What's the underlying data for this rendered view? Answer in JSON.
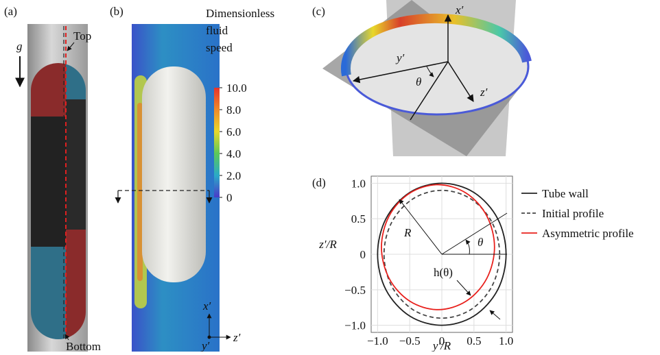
{
  "panels": {
    "a": {
      "label": "(a)",
      "gravity": "g",
      "top": "Top",
      "bottom": "Bottom"
    },
    "b": {
      "label": "(b)",
      "colorbar": {
        "title": [
          "Dimensionless",
          "fluid",
          "speed"
        ],
        "clim": [
          0,
          10
        ],
        "ticks": [
          {
            "value": 10,
            "label": "10.0"
          },
          {
            "value": 8,
            "label": "8.0"
          },
          {
            "value": 6,
            "label": "6.0"
          },
          {
            "value": 4,
            "label": "4.0"
          },
          {
            "value": 2,
            "label": "2.0"
          },
          0
        ]
      },
      "axes": {
        "x": "x′",
        "z": "z′",
        "y": "y′"
      }
    },
    "c": {
      "label": "(c)",
      "axes": {
        "x": "x′",
        "y": "y′",
        "z": "z′"
      },
      "angle": "θ"
    }
  },
  "chart_data": {
    "type": "line",
    "label": "(d)",
    "xlabel": "y′/R",
    "ylabel": "z′/R",
    "xlim": [
      -1.1,
      1.1
    ],
    "ylim": [
      -1.1,
      1.1
    ],
    "xticks": [
      {
        "value": -1,
        "label": "−1.0"
      },
      {
        "value": -0.5,
        "label": "−0.5"
      },
      0,
      0.5,
      {
        "value": 1,
        "label": "1.0"
      }
    ],
    "yticks": [
      {
        "value": 1,
        "label": "1.0"
      },
      0.5,
      0,
      {
        "value": -0.5,
        "label": "−0.5"
      },
      {
        "value": -1,
        "label": "−1.0"
      }
    ],
    "grid": true,
    "annotations": {
      "radius": "R",
      "angle": "θ",
      "thickness": "h(θ)"
    },
    "series": [
      {
        "name": "Tube wall",
        "color": "#222222",
        "dash": false,
        "x": [
          1,
          0.87,
          0.5,
          0,
          -0.5,
          -0.87,
          -1,
          -0.87,
          -0.5,
          0,
          0.5,
          0.87,
          1
        ],
        "values": [
          0,
          0.5,
          0.87,
          1,
          0.87,
          0.5,
          0,
          -0.5,
          -0.87,
          -1,
          -0.87,
          -0.5,
          0
        ]
      },
      {
        "name": "Initial profile",
        "color": "#444444",
        "dash": true,
        "x": [
          0.9,
          0.78,
          0.45,
          0,
          -0.45,
          -0.78,
          -0.9,
          -0.78,
          -0.45,
          0,
          0.45,
          0.78,
          0.9
        ],
        "values": [
          0,
          0.45,
          0.78,
          0.9,
          0.78,
          0.45,
          0,
          -0.45,
          -0.78,
          -0.9,
          -0.78,
          -0.45,
          0
        ]
      },
      {
        "name": "Asymmetric profile",
        "color": "#e8201c",
        "dash": false,
        "x": [
          0.82,
          0.7,
          0.38,
          -0.06,
          -0.5,
          -0.82,
          -0.94,
          -0.82,
          -0.5,
          -0.06,
          0.38,
          0.7,
          0.82
        ],
        "values": [
          0.1,
          0.54,
          0.86,
          0.98,
          0.86,
          0.54,
          0.1,
          -0.34,
          -0.66,
          -0.78,
          -0.66,
          -0.34,
          0.1
        ]
      }
    ]
  }
}
